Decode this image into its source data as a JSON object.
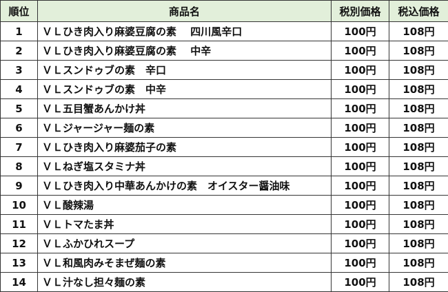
{
  "headers": {
    "rank": "順位",
    "name": "商品名",
    "price": "税別価格",
    "price_tax": "税込価格"
  },
  "colors": {
    "header_bg": "#e2efda"
  },
  "rows": [
    {
      "rank": "1",
      "name": "ＶＬひき肉入り麻婆豆腐の素　 四川風辛口",
      "price": "100円",
      "price_tax": "108円"
    },
    {
      "rank": "2",
      "name": "ＶＬひき肉入り麻婆豆腐の素　 中辛",
      "price": "100円",
      "price_tax": "108円"
    },
    {
      "rank": "3",
      "name": "ＶＬスンドゥブの素　辛口",
      "price": "100円",
      "price_tax": "108円"
    },
    {
      "rank": "4",
      "name": "ＶＬスンドゥブの素　中辛",
      "price": "100円",
      "price_tax": "108円"
    },
    {
      "rank": "5",
      "name": "ＶＬ五目蟹あんかけ丼",
      "price": "100円",
      "price_tax": "108円"
    },
    {
      "rank": "6",
      "name": "ＶＬジャージャー麺の素",
      "price": "100円",
      "price_tax": "108円"
    },
    {
      "rank": "7",
      "name": "ＶＬひき肉入り麻婆茄子の素",
      "price": "100円",
      "price_tax": "108円"
    },
    {
      "rank": "8",
      "name": "ＶＬねぎ塩スタミナ丼",
      "price": "100円",
      "price_tax": "108円"
    },
    {
      "rank": "9",
      "name": "ＶＬひき肉入り中華あんかけの素　オイスター醤油味",
      "price": "100円",
      "price_tax": "108円"
    },
    {
      "rank": "10",
      "name": "ＶＬ酸辣湯",
      "price": "100円",
      "price_tax": "108円"
    },
    {
      "rank": "11",
      "name": "ＶＬトマたま丼",
      "price": "100円",
      "price_tax": "108円"
    },
    {
      "rank": "12",
      "name": "ＶＬふかひれスープ",
      "price": "100円",
      "price_tax": "108円"
    },
    {
      "rank": "13",
      "name": "ＶＬ和風肉みそまぜ麺の素",
      "price": "100円",
      "price_tax": "108円"
    },
    {
      "rank": "14",
      "name": "ＶＬ汁なし担々麺の素",
      "price": "100円",
      "price_tax": "108円"
    }
  ]
}
